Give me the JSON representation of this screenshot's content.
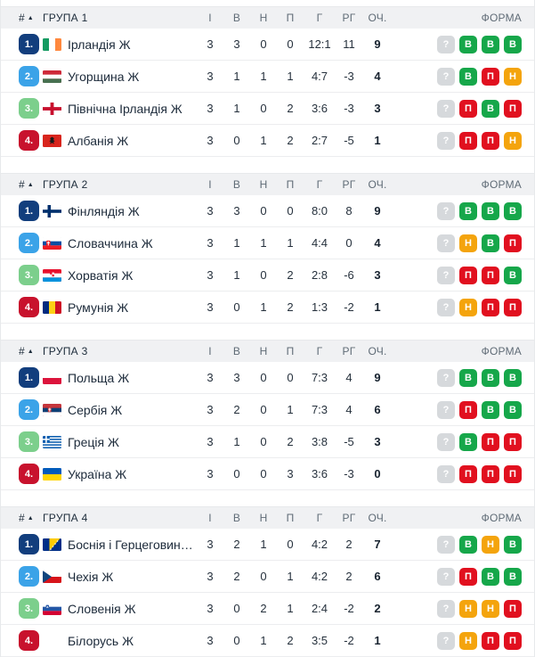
{
  "columns": {
    "pos": "#",
    "sort_icon": "▲",
    "played": "І",
    "wins": "В",
    "draws": "Н",
    "losses": "П",
    "goals": "Г",
    "diff": "РГ",
    "points": "ОЧ.",
    "form": "ФОРМА"
  },
  "form_legend": {
    "win": "В",
    "draw": "Н",
    "loss": "П",
    "unknown": "?"
  },
  "colors": {
    "form_win": "#16A74A",
    "form_draw": "#F4A40D",
    "form_loss": "#E1101F",
    "form_unknown": "#D6D9DC",
    "rank_1": "#123E7D",
    "rank_2": "#3BA3E8",
    "rank_3": "#7CCF8C",
    "rank_4": "#C8122D",
    "header_bg": "#F0F1F3"
  },
  "groups": [
    {
      "title": "ГРУПА 1",
      "rows": [
        {
          "rank": "1.",
          "level": 1,
          "flag": "ie",
          "team": "Ірландія Ж",
          "played": 3,
          "wins": 3,
          "draws": 0,
          "losses": 0,
          "goals": "12:1",
          "diff": 11,
          "points": 9,
          "form": [
            "unknown",
            "win",
            "win",
            "win"
          ]
        },
        {
          "rank": "2.",
          "level": 2,
          "flag": "hu",
          "team": "Угорщина Ж",
          "played": 3,
          "wins": 1,
          "draws": 1,
          "losses": 1,
          "goals": "4:7",
          "diff": -3,
          "points": 4,
          "form": [
            "unknown",
            "win",
            "loss",
            "draw"
          ]
        },
        {
          "rank": "3.",
          "level": 3,
          "flag": "nir",
          "team": "Північна Ірландія Ж",
          "played": 3,
          "wins": 1,
          "draws": 0,
          "losses": 2,
          "goals": "3:6",
          "diff": -3,
          "points": 3,
          "form": [
            "unknown",
            "loss",
            "win",
            "loss"
          ]
        },
        {
          "rank": "4.",
          "level": 4,
          "flag": "al",
          "team": "Албанія Ж",
          "played": 3,
          "wins": 0,
          "draws": 1,
          "losses": 2,
          "goals": "2:7",
          "diff": -5,
          "points": 1,
          "form": [
            "unknown",
            "loss",
            "loss",
            "draw"
          ]
        }
      ]
    },
    {
      "title": "ГРУПА 2",
      "rows": [
        {
          "rank": "1.",
          "level": 1,
          "flag": "fi",
          "team": "Фінляндія Ж",
          "played": 3,
          "wins": 3,
          "draws": 0,
          "losses": 0,
          "goals": "8:0",
          "diff": 8,
          "points": 9,
          "form": [
            "unknown",
            "win",
            "win",
            "win"
          ]
        },
        {
          "rank": "2.",
          "level": 2,
          "flag": "sk",
          "team": "Словаччина Ж",
          "played": 3,
          "wins": 1,
          "draws": 1,
          "losses": 1,
          "goals": "4:4",
          "diff": 0,
          "points": 4,
          "form": [
            "unknown",
            "draw",
            "win",
            "loss"
          ]
        },
        {
          "rank": "3.",
          "level": 3,
          "flag": "hr",
          "team": "Хорватія Ж",
          "played": 3,
          "wins": 1,
          "draws": 0,
          "losses": 2,
          "goals": "2:8",
          "diff": -6,
          "points": 3,
          "form": [
            "unknown",
            "loss",
            "loss",
            "win"
          ]
        },
        {
          "rank": "4.",
          "level": 4,
          "flag": "ro",
          "team": "Румунія Ж",
          "played": 3,
          "wins": 0,
          "draws": 1,
          "losses": 2,
          "goals": "1:3",
          "diff": -2,
          "points": 1,
          "form": [
            "unknown",
            "draw",
            "loss",
            "loss"
          ]
        }
      ]
    },
    {
      "title": "ГРУПА 3",
      "rows": [
        {
          "rank": "1.",
          "level": 1,
          "flag": "pl",
          "team": "Польща Ж",
          "played": 3,
          "wins": 3,
          "draws": 0,
          "losses": 0,
          "goals": "7:3",
          "diff": 4,
          "points": 9,
          "form": [
            "unknown",
            "win",
            "win",
            "win"
          ]
        },
        {
          "rank": "2.",
          "level": 2,
          "flag": "rs",
          "team": "Сербія Ж",
          "played": 3,
          "wins": 2,
          "draws": 0,
          "losses": 1,
          "goals": "7:3",
          "diff": 4,
          "points": 6,
          "form": [
            "unknown",
            "loss",
            "win",
            "win"
          ]
        },
        {
          "rank": "3.",
          "level": 3,
          "flag": "gr",
          "team": "Греція Ж",
          "played": 3,
          "wins": 1,
          "draws": 0,
          "losses": 2,
          "goals": "3:8",
          "diff": -5,
          "points": 3,
          "form": [
            "unknown",
            "win",
            "loss",
            "loss"
          ]
        },
        {
          "rank": "4.",
          "level": 4,
          "flag": "ua",
          "team": "Україна Ж",
          "played": 3,
          "wins": 0,
          "draws": 0,
          "losses": 3,
          "goals": "3:6",
          "diff": -3,
          "points": 0,
          "form": [
            "unknown",
            "loss",
            "loss",
            "loss"
          ]
        }
      ]
    },
    {
      "title": "ГРУПА 4",
      "rows": [
        {
          "rank": "1.",
          "level": 1,
          "flag": "ba",
          "team": "Боснія і Герцеговина Ж",
          "played": 3,
          "wins": 2,
          "draws": 1,
          "losses": 0,
          "goals": "4:2",
          "diff": 2,
          "points": 7,
          "form": [
            "unknown",
            "win",
            "draw",
            "win"
          ]
        },
        {
          "rank": "2.",
          "level": 2,
          "flag": "cz",
          "team": "Чехія Ж",
          "played": 3,
          "wins": 2,
          "draws": 0,
          "losses": 1,
          "goals": "4:2",
          "diff": 2,
          "points": 6,
          "form": [
            "unknown",
            "loss",
            "win",
            "win"
          ]
        },
        {
          "rank": "3.",
          "level": 3,
          "flag": "si",
          "team": "Словенія Ж",
          "played": 3,
          "wins": 0,
          "draws": 2,
          "losses": 1,
          "goals": "2:4",
          "diff": -2,
          "points": 2,
          "form": [
            "unknown",
            "draw",
            "draw",
            "loss"
          ]
        },
        {
          "rank": "4.",
          "level": 4,
          "flag": "",
          "team": "Білорусь Ж",
          "played": 3,
          "wins": 0,
          "draws": 1,
          "losses": 2,
          "goals": "3:5",
          "diff": -2,
          "points": 1,
          "form": [
            "unknown",
            "draw",
            "loss",
            "loss"
          ]
        }
      ]
    }
  ]
}
